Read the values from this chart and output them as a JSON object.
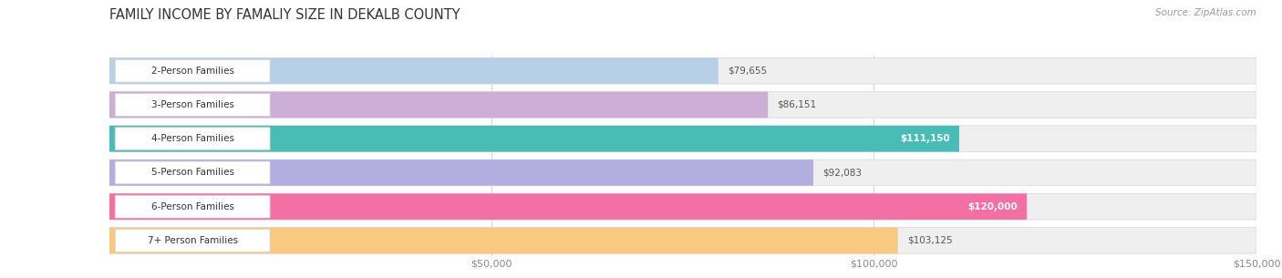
{
  "title": "FAMILY INCOME BY FAMALIY SIZE IN DEKALB COUNTY",
  "source": "Source: ZipAtlas.com",
  "categories": [
    "2-Person Families",
    "3-Person Families",
    "4-Person Families",
    "5-Person Families",
    "6-Person Families",
    "7+ Person Families"
  ],
  "values": [
    79655,
    86151,
    111150,
    92083,
    120000,
    103125
  ],
  "bar_colors": [
    "#b8cfe8",
    "#ccaed6",
    "#47bdb5",
    "#b3aee0",
    "#f46fa4",
    "#f8c97e"
  ],
  "label_colors": [
    "#444444",
    "#444444",
    "#ffffff",
    "#444444",
    "#ffffff",
    "#444444"
  ],
  "bar_bg_color": "#efefef",
  "bar_bg_stroke": "#d5d5d5",
  "title_fontsize": 10.5,
  "source_fontsize": 7.5,
  "label_fontsize": 7.5,
  "value_fontsize": 7.5,
  "xlim": [
    0,
    150000
  ],
  "xtick_vals": [
    50000,
    100000,
    150000
  ],
  "xtick_labels": [
    "$50,000",
    "$100,000",
    "$150,000"
  ],
  "background_color": "#ffffff"
}
